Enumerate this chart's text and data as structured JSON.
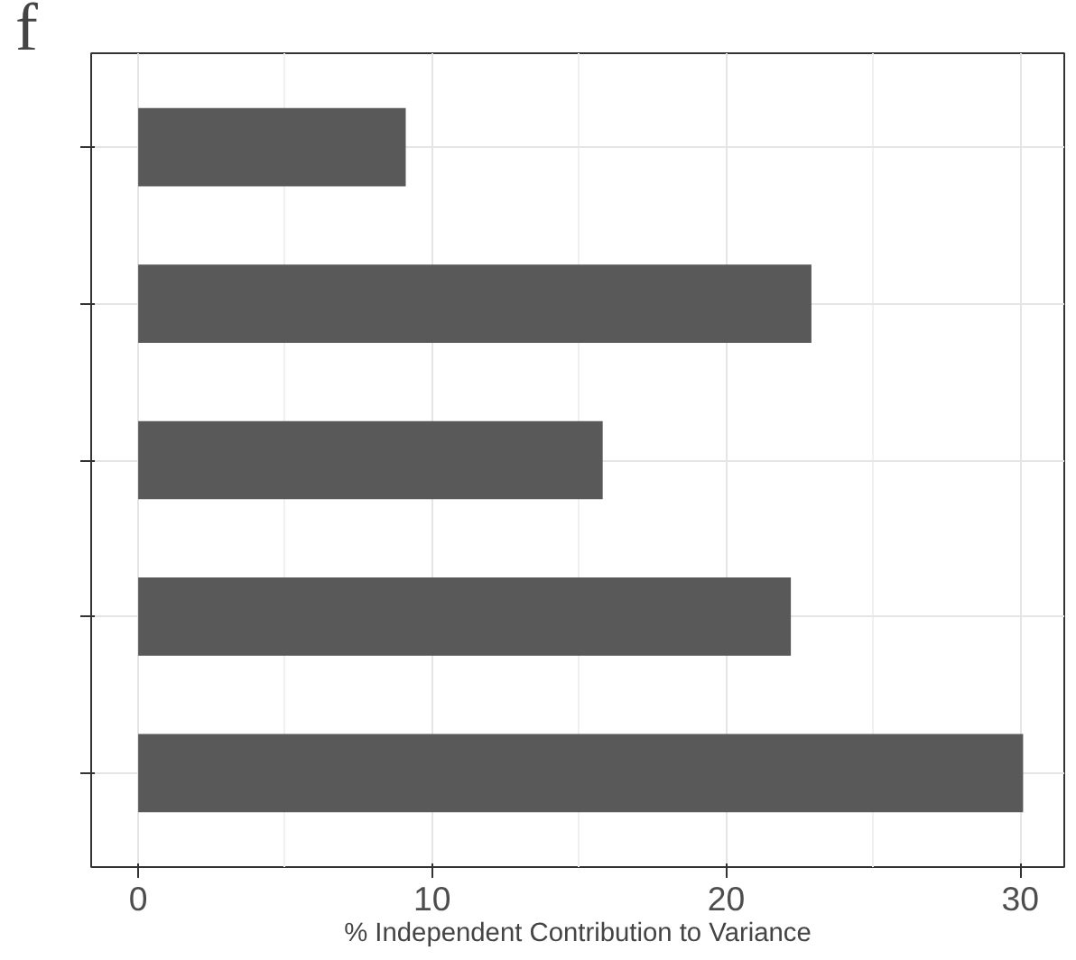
{
  "chart_data": {
    "type": "bar",
    "orientation": "horizontal",
    "categories": [
      null,
      null,
      null,
      null,
      null
    ],
    "values": [
      9.1,
      22.9,
      15.8,
      22.2,
      30.1
    ],
    "color": "#595959",
    "xlabel": "% Independent Contribution to Variance",
    "xlim": [
      -1.6,
      31.5
    ],
    "xticks": [
      0,
      {
        "value": 5,
        "label": null
      },
      10,
      {
        "value": 15,
        "label": null
      },
      20,
      {
        "value": 25,
        "label": null
      },
      30
    ],
    "grid": true,
    "tick_labels": "x",
    "annotations": [
      "f"
    ]
  }
}
